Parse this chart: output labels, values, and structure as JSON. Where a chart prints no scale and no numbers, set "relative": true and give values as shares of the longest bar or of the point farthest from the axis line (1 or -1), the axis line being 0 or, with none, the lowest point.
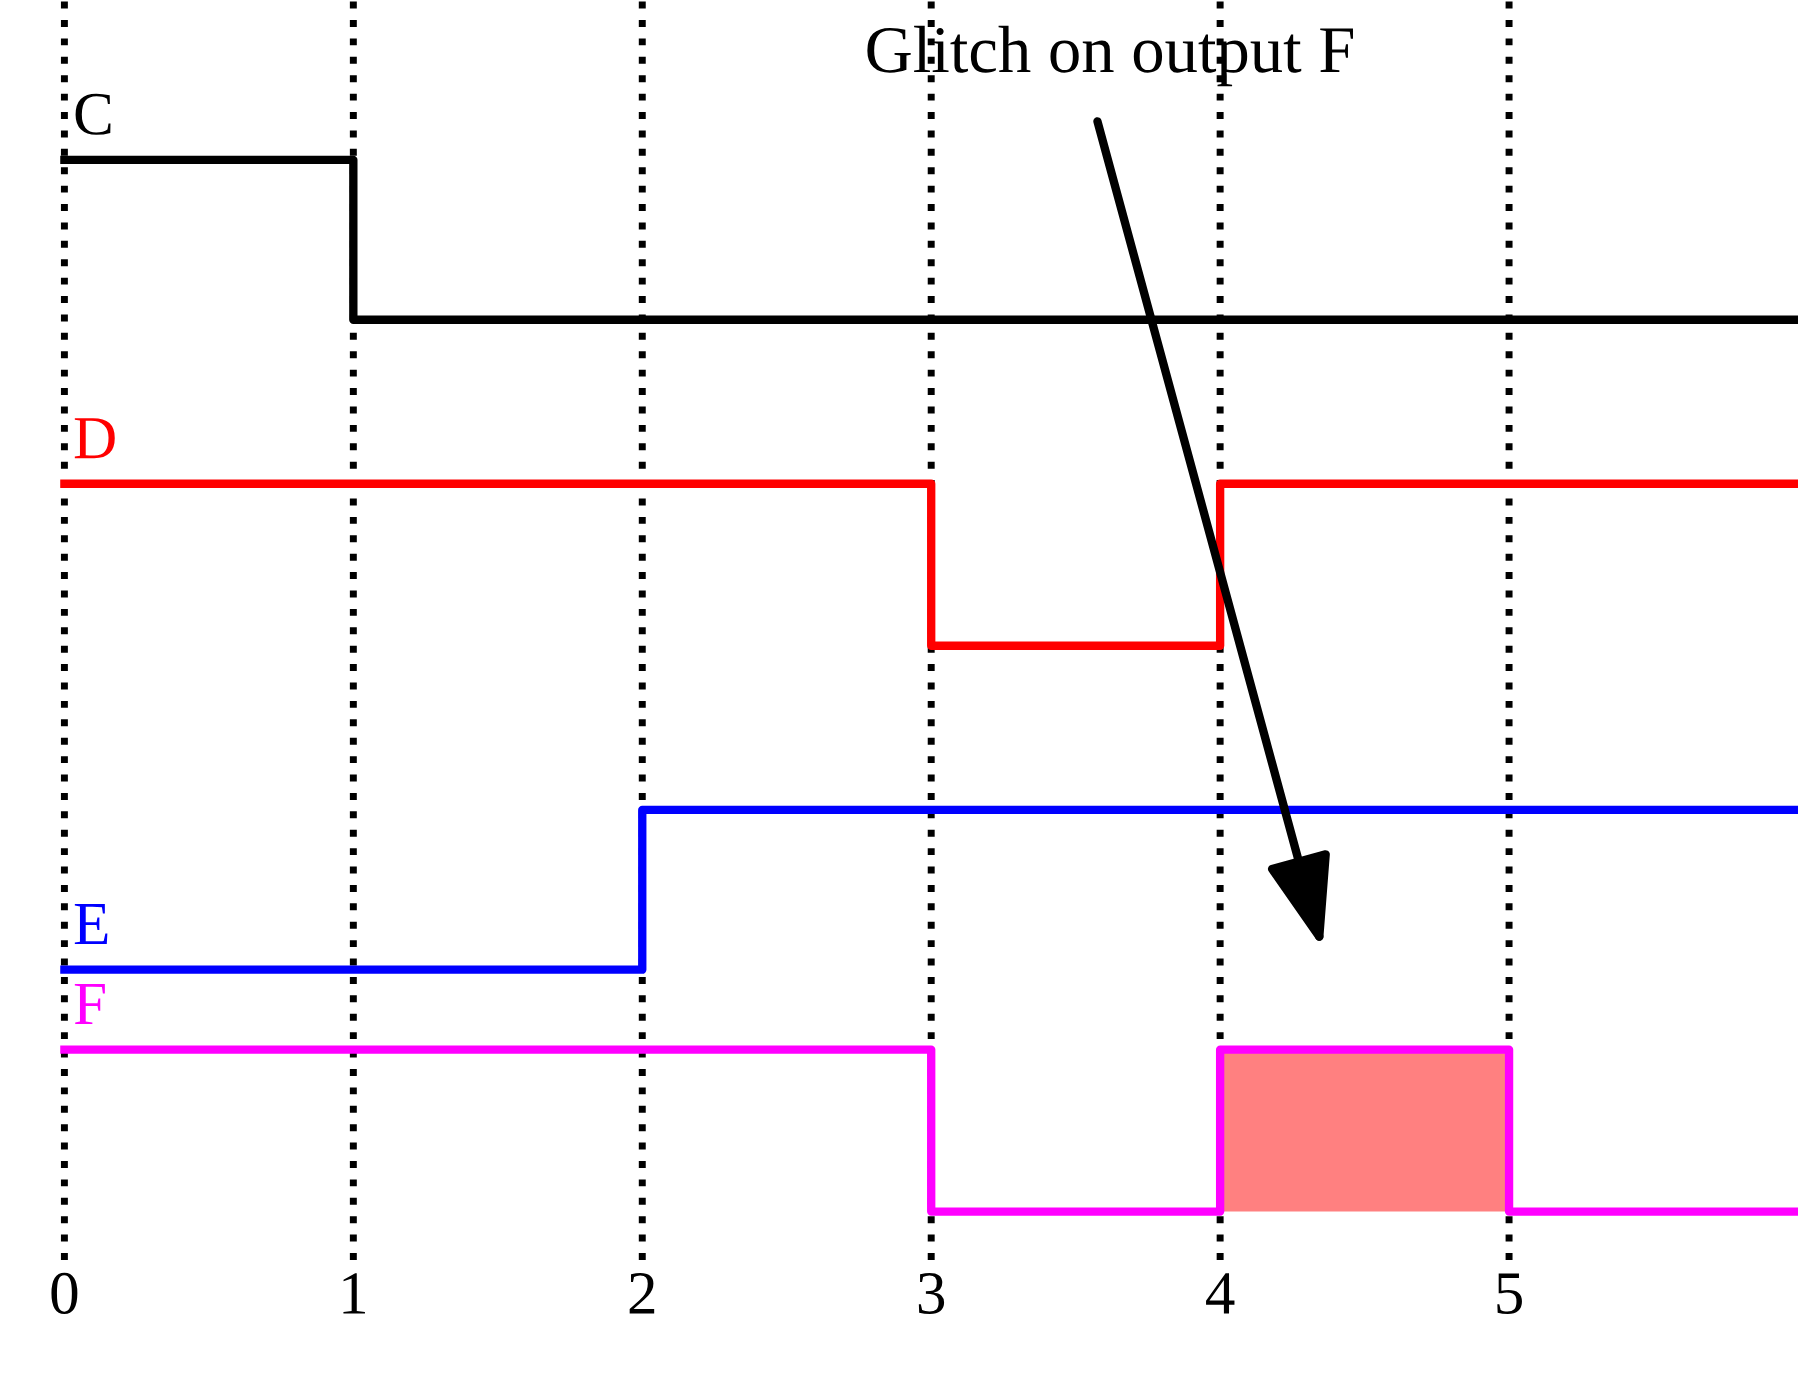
{
  "chart_data": {
    "type": "step",
    "relative": true,
    "tick_labels": "x",
    "grid": "x",
    "legend": false,
    "xlim": [
      -0.03,
      6
    ],
    "xticks": [
      0,
      1,
      2,
      3,
      4,
      5
    ],
    "annotations": [
      "Glitch on output F"
    ],
    "series": [
      {
        "name": "C",
        "color": "#000000",
        "x": [
          0,
          1,
          6
        ],
        "values": [
          1,
          0.848,
          0.848
        ]
      },
      {
        "name": "D",
        "color": "#ff0000",
        "x": [
          0,
          3,
          4,
          6
        ],
        "values": [
          0.692,
          0.538,
          0.692,
          0.692
        ]
      },
      {
        "name": "E",
        "color": "#0000ff",
        "x": [
          0,
          2,
          6
        ],
        "values": [
          0.23,
          0.382,
          0.382
        ]
      },
      {
        "name": "F",
        "color": "#ff00ff",
        "x": [
          0,
          3,
          4,
          5,
          6
        ],
        "values": [
          0.154,
          0,
          0.154,
          0,
          0
        ]
      },
      {
        "type": "area",
        "color": "#ff8080",
        "x": [
          4,
          5
        ],
        "values": [
          0.154,
          0.154
        ]
      }
    ]
  }
}
